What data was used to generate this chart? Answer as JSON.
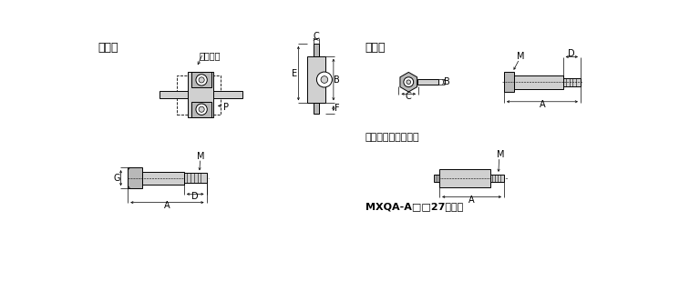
{
  "bg_color": "#ffffff",
  "line_color": "#000000",
  "title_zensin": "前進端",
  "title_koutai": "後退端",
  "label_table": "テーブル",
  "label_rubba": "ラバーストッパ単体",
  "label_mxqa": "MXQA-A□□27の場合",
  "fontsize_title": 9,
  "fontsize_label": 7,
  "fontsize_dim": 7
}
